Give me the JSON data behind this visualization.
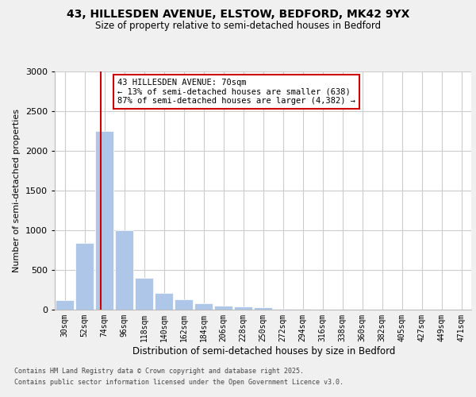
{
  "title_line1": "43, HILLESDEN AVENUE, ELSTOW, BEDFORD, MK42 9YX",
  "title_line2": "Size of property relative to semi-detached houses in Bedford",
  "xlabel": "Distribution of semi-detached houses by size in Bedford",
  "ylabel": "Number of semi-detached properties",
  "annotation_title": "43 HILLESDEN AVENUE: 70sqm",
  "annotation_line2": "← 13% of semi-detached houses are smaller (638)",
  "annotation_line3": "87% of semi-detached houses are larger (4,382) →",
  "footer_line1": "Contains HM Land Registry data © Crown copyright and database right 2025.",
  "footer_line2": "Contains public sector information licensed under the Open Government Licence v3.0.",
  "bin_labels": [
    "30sqm",
    "52sqm",
    "74sqm",
    "96sqm",
    "118sqm",
    "140sqm",
    "162sqm",
    "184sqm",
    "206sqm",
    "228sqm",
    "250sqm",
    "272sqm",
    "294sqm",
    "316sqm",
    "338sqm",
    "360sqm",
    "382sqm",
    "405sqm",
    "427sqm",
    "449sqm",
    "471sqm"
  ],
  "bar_values": [
    120,
    840,
    2250,
    1000,
    400,
    210,
    130,
    80,
    55,
    40,
    30,
    15,
    10,
    5,
    3,
    2,
    2,
    1,
    1,
    1,
    1
  ],
  "bar_color": "#aec6e8",
  "bar_edge_color": "#ffffff",
  "ylim": [
    0,
    3000
  ],
  "yticks": [
    0,
    500,
    1000,
    1500,
    2000,
    2500,
    3000
  ],
  "background_color": "#f0f0f0",
  "plot_bg_color": "#ffffff",
  "grid_color": "#cccccc",
  "annotation_box_color": "#ffffff",
  "annotation_border_color": "#cc0000",
  "red_line_color": "#cc0000",
  "red_line_x": 1.82
}
